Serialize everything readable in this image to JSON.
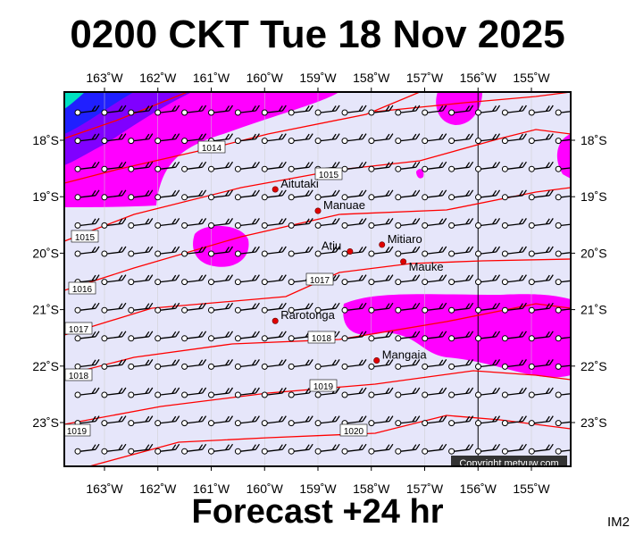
{
  "title": "0200 CKT Tue 18 Nov 2025",
  "footer": "Forecast +24 hr",
  "code": "IM2",
  "copyright": "Copyright metvuw.com",
  "lon_labels": [
    "163˚W",
    "162˚W",
    "161˚W",
    "160˚W",
    "159˚W",
    "158˚W",
    "157˚W",
    "156˚W",
    "155˚W"
  ],
  "lat_labels": [
    "18˚S",
    "19˚S",
    "20˚S",
    "21˚S",
    "22˚S",
    "23˚S"
  ],
  "islands": [
    {
      "name": "Aitutaki",
      "lon": -159.8,
      "lat": -18.87
    },
    {
      "name": "Manuae",
      "lon": -159.0,
      "lat": -19.25
    },
    {
      "name": "Atiu",
      "lon": -158.4,
      "lat": -19.97
    },
    {
      "name": "Mitiaro",
      "lon": -157.8,
      "lat": -19.85
    },
    {
      "name": "Mauke",
      "lon": -157.4,
      "lat": -20.15
    },
    {
      "name": "Rarotonga",
      "lon": -159.8,
      "lat": -21.2
    },
    {
      "name": "Mangaia",
      "lon": -157.9,
      "lat": -21.9
    }
  ],
  "isobar_labels": [
    "1014",
    "1015",
    "1016",
    "1017",
    "1018",
    "1019",
    "1020"
  ],
  "colors": {
    "background": "#e6e6fa",
    "rain": "#ff00ff",
    "isobar": "#ff0000",
    "island": "#e00000"
  }
}
